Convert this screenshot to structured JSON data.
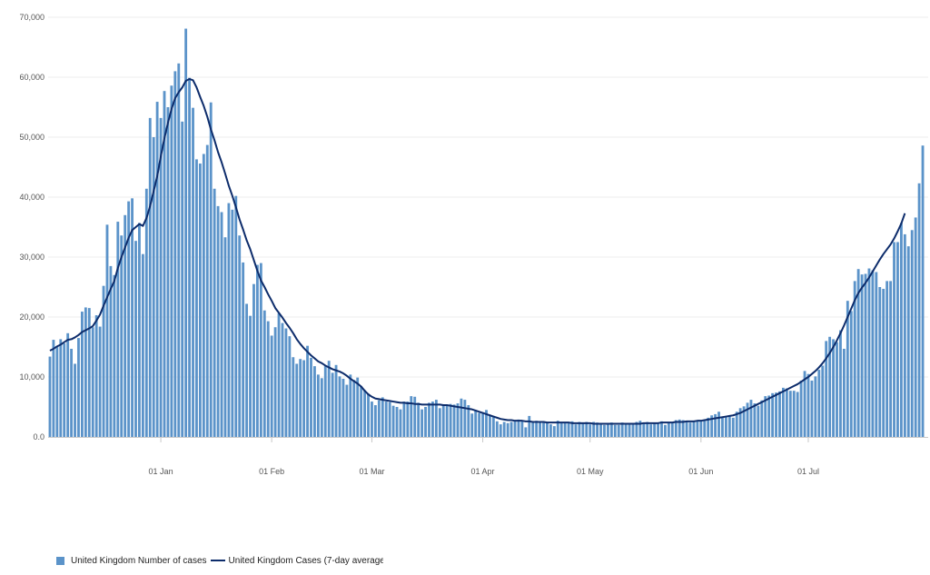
{
  "chart_data": {
    "type": "bar",
    "ylim": [
      0,
      70000
    ],
    "y_ticks": [
      0,
      10000,
      20000,
      30000,
      40000,
      50000,
      60000,
      70000
    ],
    "y_tick_labels": [
      "0.0",
      "10,000",
      "20,000",
      "30,000",
      "40,000",
      "50,000",
      "60,000",
      "70,000"
    ],
    "x_start": "2020-12-01",
    "x_ticks": [
      {
        "date": "2021-01-01",
        "label": "01 Jan"
      },
      {
        "date": "2021-02-01",
        "label": "01 Feb"
      },
      {
        "date": "2021-03-01",
        "label": "01 Mar"
      },
      {
        "date": "2021-04-01",
        "label": "01 Apr"
      },
      {
        "date": "2021-05-01",
        "label": "01 May"
      },
      {
        "date": "2021-06-01",
        "label": "01 Jun"
      },
      {
        "date": "2021-07-01",
        "label": "01 Jul"
      }
    ],
    "grid": true,
    "legend_position": "bottom-left",
    "series": [
      {
        "name": "United Kingdom Number of cases",
        "kind": "bar",
        "color": "#5b93c9",
        "values": [
          13400,
          16200,
          15100,
          16300,
          15600,
          17300,
          14700,
          12200,
          16500,
          20900,
          21600,
          21500,
          18300,
          20300,
          18400,
          25200,
          35400,
          28500,
          27000,
          35900,
          33600,
          37000,
          39300,
          39800,
          32700,
          35700,
          30500,
          41400,
          53200,
          50000,
          55900,
          53200,
          57700,
          55000,
          58600,
          61000,
          62300,
          52600,
          68100,
          59900,
          54900,
          46300,
          45600,
          47200,
          48700,
          55800,
          41400,
          38500,
          37500,
          33300,
          39000,
          37900,
          40200,
          33600,
          29100,
          22200,
          20200,
          25500,
          28700,
          29000,
          21100,
          19300,
          16900,
          18300,
          20600,
          19000,
          18100,
          16800,
          13300,
          12200,
          13000,
          12800,
          15200,
          13200,
          11800,
          10400,
          9800,
          11800,
          12700,
          10700,
          12000,
          10100,
          9700,
          8700,
          10400,
          9500,
          9900,
          8500,
          7800,
          7200,
          5900,
          5300,
          6100,
          6600,
          5900,
          5800,
          5200,
          5000,
          4600,
          5900,
          5900,
          6800,
          6700,
          5700,
          4600,
          5000,
          5700,
          5900,
          6200,
          4800,
          5400,
          5200,
          5500,
          5400,
          5600,
          6400,
          6200,
          5300,
          3900,
          4400,
          4000,
          4100,
          4500,
          3700,
          3500,
          2600,
          2100,
          2500,
          2300,
          2500,
          2800,
          2900,
          2700,
          1600,
          3500,
          2400,
          2700,
          2400,
          2600,
          2300,
          2100,
          1800,
          2700,
          2400,
          2500,
          2300,
          2600,
          2100,
          2500,
          2200,
          2500,
          2100,
          2500,
          2400,
          2300,
          2000,
          2300,
          2400,
          2000,
          2000,
          2400,
          2300,
          2100,
          2100,
          2500,
          2700,
          2300,
          2500,
          2100,
          2300,
          2400,
          2600,
          2000,
          2300,
          2400,
          2800,
          2900,
          2800,
          2500,
          2400,
          2500,
          2700,
          2600,
          2700,
          3200,
          3600,
          3800,
          4200,
          3300,
          3500,
          3400,
          3200,
          4200,
          4800,
          5100,
          5700,
          6200,
          5600,
          5200,
          6100,
          6800,
          6900,
          7300,
          7400,
          7600,
          8200,
          8100,
          7700,
          7700,
          7500,
          9400,
          11000,
          10500,
          9400,
          10100,
          11200,
          11900,
          16000,
          16700,
          16300,
          15800,
          17800,
          14700,
          22700,
          21000,
          26000,
          28000,
          27100,
          27200,
          28100,
          27800,
          27500,
          25000,
          24700,
          26000,
          26000,
          32500,
          32500,
          35700,
          33800,
          31800,
          34500,
          36600,
          42300,
          48600
        ]
      },
      {
        "name": "United Kingdom Cases (7-day average",
        "kind": "line",
        "color": "#0d2c6b",
        "values": [
          14400,
          14700,
          15100,
          15400,
          15800,
          16200,
          16300,
          16600,
          17000,
          17500,
          17800,
          18100,
          18500,
          19400,
          20400,
          21900,
          23300,
          24700,
          26000,
          28200,
          30000,
          31600,
          33200,
          34500,
          35000,
          35500,
          35200,
          36500,
          38500,
          41000,
          43500,
          46800,
          49800,
          52400,
          54700,
          56500,
          57500,
          58300,
          59400,
          59700,
          59500,
          58300,
          56700,
          55200,
          53400,
          51300,
          49500,
          47500,
          45800,
          43900,
          41900,
          40200,
          38300,
          36300,
          34600,
          32800,
          31300,
          29500,
          27700,
          26100,
          25000,
          23800,
          22700,
          21500,
          20700,
          19900,
          19000,
          18200,
          17300,
          16300,
          15500,
          14800,
          14200,
          13600,
          13100,
          12600,
          12300,
          11900,
          11600,
          11300,
          11100,
          10900,
          10600,
          10200,
          9700,
          9300,
          8900,
          8400,
          7700,
          7100,
          6700,
          6400,
          6300,
          6200,
          6100,
          6000,
          5900,
          5800,
          5700,
          5700,
          5600,
          5600,
          5500,
          5500,
          5400,
          5400,
          5400,
          5400,
          5400,
          5400,
          5300,
          5300,
          5200,
          5100,
          5000,
          4900,
          4800,
          4700,
          4600,
          4400,
          4200,
          4000,
          3800,
          3600,
          3400,
          3200,
          3000,
          2900,
          2800,
          2800,
          2700,
          2700,
          2700,
          2600,
          2600,
          2500,
          2500,
          2500,
          2500,
          2400,
          2400,
          2400,
          2400,
          2400,
          2400,
          2400,
          2300,
          2300,
          2300,
          2300,
          2300,
          2300,
          2200,
          2200,
          2200,
          2200,
          2200,
          2200,
          2200,
          2200,
          2200,
          2200,
          2200,
          2200,
          2200,
          2200,
          2300,
          2300,
          2300,
          2300,
          2300,
          2400,
          2400,
          2400,
          2400,
          2500,
          2500,
          2500,
          2600,
          2600,
          2600,
          2700,
          2700,
          2800,
          2900,
          3000,
          3100,
          3200,
          3300,
          3400,
          3500,
          3600,
          3800,
          4000,
          4300,
          4600,
          4900,
          5200,
          5500,
          5800,
          6100,
          6400,
          6700,
          7000,
          7300,
          7600,
          7900,
          8200,
          8500,
          8800,
          9200,
          9600,
          10000,
          10500,
          11000,
          11600,
          12300,
          13100,
          14000,
          15000,
          16100,
          17300,
          18600,
          20000,
          21400,
          22800,
          24000,
          24900,
          25700,
          26600,
          27600,
          28600,
          29600,
          30500,
          31300,
          32100,
          33100,
          34300,
          35600,
          37300
        ]
      }
    ]
  }
}
